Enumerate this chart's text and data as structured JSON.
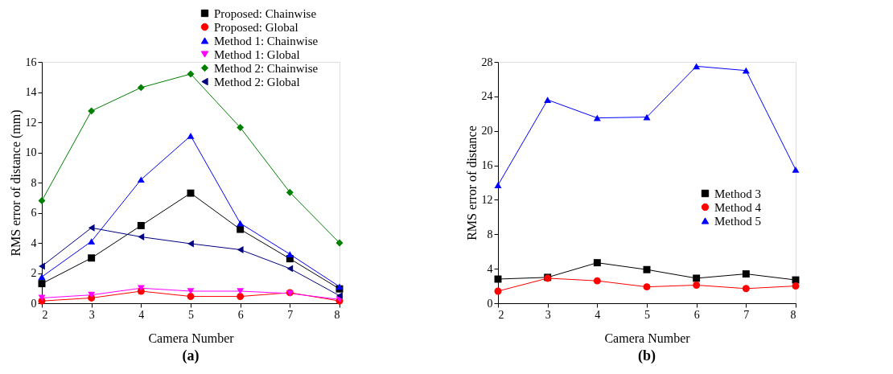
{
  "chart_data": [
    {
      "type": "line",
      "xlabel": "Camera Number",
      "ylabel": "RMS error of distance (mm)",
      "annotations": [
        "(a)"
      ],
      "x": [
        2,
        3,
        4,
        5,
        6,
        7,
        8
      ],
      "xlim": [
        2,
        8
      ],
      "xticks": [
        2,
        3,
        4,
        5,
        6,
        7,
        8
      ],
      "ylim": [
        0,
        16
      ],
      "yticks": [
        0,
        2,
        4,
        6,
        8,
        10,
        12,
        14,
        16
      ],
      "grid": false,
      "legend": "top right",
      "line_style": "solid",
      "series": [
        {
          "name": "Proposed: Chainwise",
          "color": "#000000",
          "marker": "square",
          "values": [
            1.3,
            3.0,
            5.15,
            7.3,
            4.9,
            2.95,
            0.95
          ]
        },
        {
          "name": "Proposed: Global",
          "color": "#ff0000",
          "marker": "circle",
          "values": [
            0.15,
            0.35,
            0.8,
            0.45,
            0.45,
            0.7,
            0.15
          ]
        },
        {
          "name": "Method 1: Chainwise",
          "color": "#0000ff",
          "marker": "triangle",
          "values": [
            1.75,
            4.1,
            8.2,
            11.1,
            5.3,
            3.25,
            1.1
          ]
        },
        {
          "name": "Method 1: Global",
          "color": "#ff00ff",
          "marker": "triangle-down",
          "values": [
            0.35,
            0.55,
            1.0,
            0.8,
            0.8,
            0.65,
            0.25
          ]
        },
        {
          "name": "Method 2: Chainwise",
          "color": "#008000",
          "marker": "diamond",
          "values": [
            6.8,
            12.75,
            14.3,
            15.2,
            11.65,
            7.35,
            4.0
          ]
        },
        {
          "name": "Method 2: Global",
          "color": "#000080",
          "marker": "triangle-left",
          "values": [
            2.45,
            5.0,
            4.4,
            3.95,
            3.55,
            2.3,
            0.5
          ]
        }
      ]
    },
    {
      "type": "line",
      "xlabel": "Camera Number",
      "ylabel": "RMS error of distance",
      "annotations": [
        "(b)"
      ],
      "x": [
        2,
        3,
        4,
        5,
        6,
        7,
        8
      ],
      "xlim": [
        2,
        8
      ],
      "xticks": [
        2,
        3,
        4,
        5,
        6,
        7,
        8
      ],
      "ylim": [
        0,
        28
      ],
      "yticks": [
        0,
        4,
        8,
        12,
        16,
        20,
        24,
        28
      ],
      "grid": false,
      "legend": "right",
      "line_style": "solid",
      "series": [
        {
          "name": "Method 3",
          "color": "#000000",
          "marker": "square",
          "values": [
            2.8,
            3.0,
            4.7,
            3.9,
            2.9,
            3.4,
            2.7
          ]
        },
        {
          "name": "Method 4",
          "color": "#ff0000",
          "marker": "circle",
          "values": [
            1.4,
            2.9,
            2.6,
            1.9,
            2.1,
            1.7,
            2.0
          ]
        },
        {
          "name": "Method 5",
          "color": "#0000ff",
          "marker": "triangle",
          "values": [
            13.7,
            23.6,
            21.5,
            21.6,
            27.5,
            27.0,
            15.5
          ]
        }
      ]
    }
  ]
}
